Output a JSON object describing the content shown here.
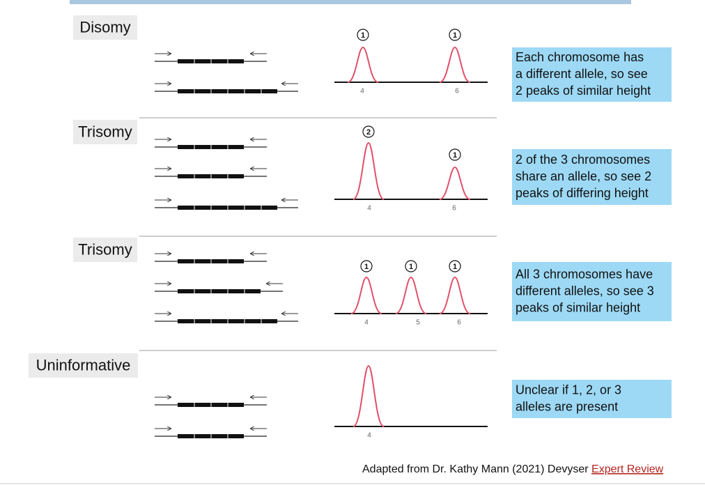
{
  "rows": [
    {
      "label": "Disomy",
      "peaks": [
        {
          "count": "1",
          "position": "4"
        },
        {
          "count": "1",
          "position": "6"
        }
      ],
      "description": [
        "Each chromosome has",
        "a different allele, so see",
        "2 peaks of similar height"
      ]
    },
    {
      "label": "Trisomy",
      "peaks": [
        {
          "count": "2",
          "position": "4"
        },
        {
          "count": "1",
          "position": "6"
        }
      ],
      "description": [
        "2 of the 3 chromosomes",
        "share an allele, so see 2",
        "peaks of differing height"
      ]
    },
    {
      "label": "Trisomy",
      "peaks": [
        {
          "count": "1",
          "position": "4"
        },
        {
          "count": "1",
          "position": "5"
        },
        {
          "count": "1",
          "position": "6"
        }
      ],
      "description": [
        "All 3 chromosomes have",
        "different alleles, so see 3",
        "peaks of similar height"
      ]
    },
    {
      "label": "Uninformative",
      "peaks": [
        {
          "position": "4"
        }
      ],
      "description": [
        "Unclear if 1, 2, or 3",
        "alleles are present"
      ]
    }
  ],
  "footer": {
    "text": "Adapted from Dr. Kathy Mann (2021) Devyser",
    "link": "Expert Review"
  }
}
